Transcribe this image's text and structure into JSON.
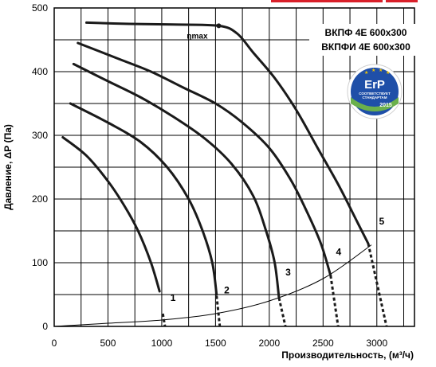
{
  "chart_data": {
    "type": "line",
    "xlabel": "Производительность, (м³/ч)",
    "ylabel": "Давление, ΔР (Па)",
    "xlim": [
      0,
      3350
    ],
    "ylim": [
      0,
      500
    ],
    "x_ticks": [
      "0",
      "500",
      "1000",
      "1500",
      "2000",
      "2500",
      "3000"
    ],
    "y_ticks": [
      "0",
      "100",
      "200",
      "300",
      "400",
      "500"
    ],
    "grid": true,
    "models": [
      "ВКПФ 4Е 600x300",
      "ВКПФИ 4Е 600x300"
    ],
    "eta_label": "ηmax",
    "eta_point": {
      "x": 1530,
      "y": 472
    },
    "erp_badge": {
      "logo": "ErP",
      "line1": "СООТВЕТСТВУЕТ",
      "line2": "СТАНДАРТАМ",
      "year": "2015"
    },
    "series": [
      {
        "label": "1",
        "points": [
          [
            80,
            297
          ],
          [
            300,
            268
          ],
          [
            500,
            228
          ],
          [
            650,
            190
          ],
          [
            780,
            150
          ],
          [
            900,
            100
          ],
          [
            980,
            55
          ],
          [
            1030,
            0
          ]
        ],
        "dashed": [
          [
            1010,
            20
          ],
          [
            1030,
            0
          ]
        ]
      },
      {
        "label": "2",
        "points": [
          [
            150,
            350
          ],
          [
            500,
            320
          ],
          [
            800,
            290
          ],
          [
            1050,
            250
          ],
          [
            1250,
            200
          ],
          [
            1380,
            150
          ],
          [
            1470,
            100
          ],
          [
            1510,
            50
          ],
          [
            1540,
            0
          ]
        ],
        "dashed": [
          [
            1510,
            48
          ],
          [
            1540,
            0
          ]
        ]
      },
      {
        "label": "3",
        "points": [
          [
            180,
            412
          ],
          [
            500,
            385
          ],
          [
            800,
            360
          ],
          [
            1100,
            330
          ],
          [
            1400,
            295
          ],
          [
            1650,
            255
          ],
          [
            1850,
            205
          ],
          [
            1970,
            150
          ],
          [
            2050,
            100
          ],
          [
            2090,
            45
          ],
          [
            2150,
            0
          ]
        ],
        "dashed": [
          [
            2090,
            45
          ],
          [
            2150,
            0
          ]
        ]
      },
      {
        "label": "4",
        "points": [
          [
            220,
            445
          ],
          [
            600,
            420
          ],
          [
            900,
            400
          ],
          [
            1200,
            375
          ],
          [
            1500,
            350
          ],
          [
            1750,
            320
          ],
          [
            2000,
            280
          ],
          [
            2200,
            230
          ],
          [
            2350,
            180
          ],
          [
            2480,
            130
          ],
          [
            2570,
            80
          ],
          [
            2640,
            0
          ]
        ],
        "dashed": [
          [
            2570,
            80
          ],
          [
            2640,
            0
          ]
        ]
      },
      {
        "label": "5",
        "points": [
          [
            300,
            477
          ],
          [
            700,
            475
          ],
          [
            1100,
            474
          ],
          [
            1530,
            472
          ],
          [
            1700,
            460
          ],
          [
            1850,
            430
          ],
          [
            2050,
            390
          ],
          [
            2250,
            340
          ],
          [
            2450,
            280
          ],
          [
            2650,
            220
          ],
          [
            2800,
            170
          ],
          [
            2920,
            130
          ],
          [
            3010,
            60
          ],
          [
            3090,
            0
          ]
        ],
        "dashed": [
          [
            2920,
            130
          ],
          [
            3090,
            0
          ]
        ]
      }
    ],
    "system_curve": [
      [
        0,
        0
      ],
      [
        500,
        5
      ],
      [
        1000,
        10
      ],
      [
        1500,
        20
      ],
      [
        2000,
        40
      ],
      [
        2500,
        75
      ],
      [
        2950,
        128
      ]
    ]
  },
  "colors": {
    "curve": "#1a1a1a",
    "grid": "#000000",
    "badge_blue": "#1f4fa8",
    "badge_green": "#6ab04c",
    "badge_star": "#f2c500",
    "top_bar": "#d9202a"
  }
}
